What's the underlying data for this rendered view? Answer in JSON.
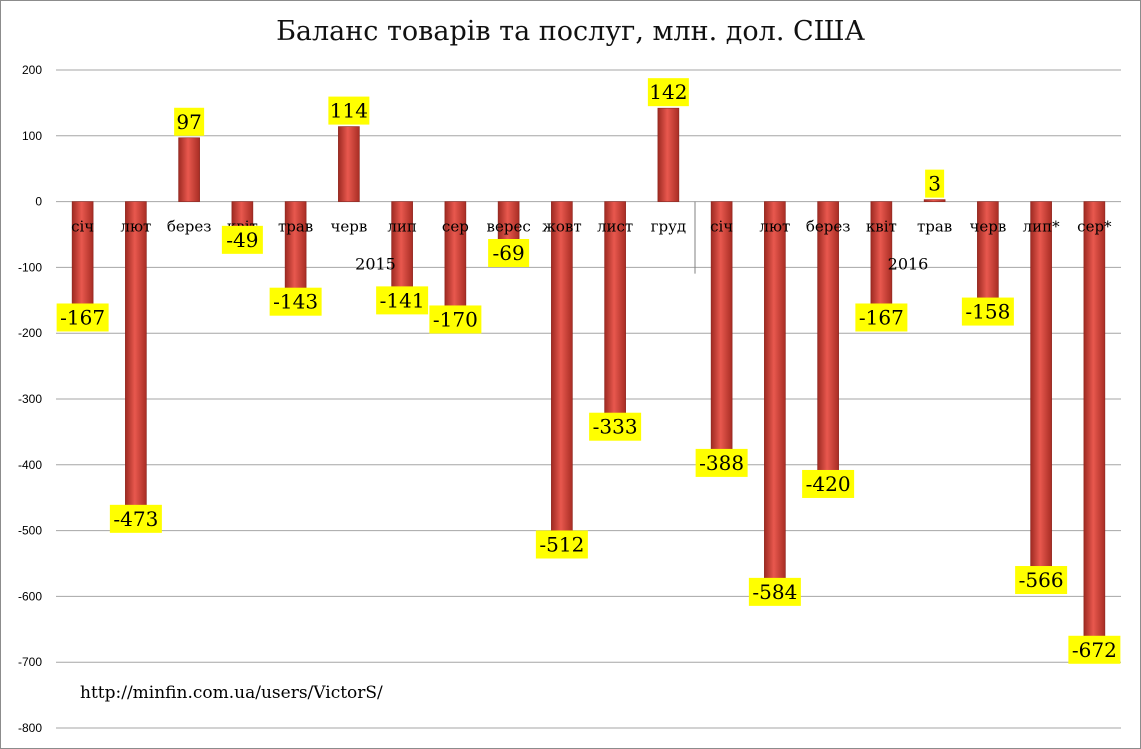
{
  "chart_data": {
    "type": "bar",
    "title": "Баланс товарів та послуг, млн. дол. США",
    "categories": [
      "січ",
      "лют",
      "берез",
      "квіт",
      "трав",
      "черв",
      "лип",
      "сер",
      "верес",
      "жовт",
      "лист",
      "груд",
      "січ",
      "лют",
      "берез",
      "квіт",
      "трав",
      "черв",
      "лип*",
      "сер*"
    ],
    "groups": [
      {
        "label": "2015",
        "count": 12
      },
      {
        "label": "2016",
        "count": 8
      }
    ],
    "values": [
      -167,
      -473,
      97,
      -49,
      -143,
      114,
      -141,
      -170,
      -69,
      -512,
      -333,
      142,
      -388,
      -584,
      -420,
      -167,
      3,
      -158,
      -566,
      -672
    ],
    "ylim": [
      -800,
      200
    ],
    "yticks": [
      200,
      100,
      0,
      -100,
      -200,
      -300,
      -400,
      -500,
      -600,
      -700,
      -800
    ],
    "grid": true,
    "legend": "none",
    "colors": {
      "bar": "#c0392b",
      "bar_light": "#e8584e",
      "label_bg": "#ffff00",
      "grid": "#a6a6a6"
    }
  },
  "source_note": "http://minfin.com.ua/users/VictorS/"
}
